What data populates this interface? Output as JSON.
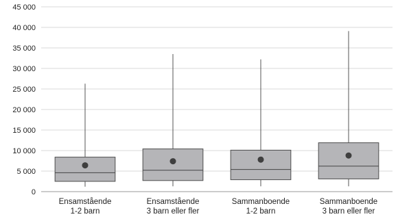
{
  "chart_data": {
    "type": "boxplot",
    "title": "",
    "xlabel": "",
    "ylabel": "",
    "ylim": [
      0,
      45000
    ],
    "yticks": [
      0,
      5000,
      10000,
      15000,
      20000,
      25000,
      30000,
      35000,
      40000,
      45000
    ],
    "ytick_labels": [
      "0",
      "5 000",
      "10 000",
      "15 000",
      "20 000",
      "25 000",
      "30 000",
      "35 000",
      "40 000",
      "45 000"
    ],
    "grid": true,
    "legend": "none",
    "categories": [
      {
        "line1": "Ensamstående",
        "line2": "1-2 barn"
      },
      {
        "line1": "Ensamstående",
        "line2": "3 barn eller fler"
      },
      {
        "line1": "Sammanboende",
        "line2": "1-2 barn"
      },
      {
        "line1": "Sammanboende",
        "line2": "3 barn eller fler"
      }
    ],
    "boxes": [
      {
        "min": 1200,
        "q1": 2500,
        "median": 4600,
        "q3": 8400,
        "max": 26300,
        "mean": 6400
      },
      {
        "min": 1300,
        "q1": 2700,
        "median": 5200,
        "q3": 10400,
        "max": 33500,
        "mean": 7400
      },
      {
        "min": 1300,
        "q1": 2900,
        "median": 5400,
        "q3": 10100,
        "max": 32200,
        "mean": 7800
      },
      {
        "min": 1300,
        "q1": 3100,
        "median": 6200,
        "q3": 11900,
        "max": 39100,
        "mean": 8800
      }
    ],
    "colors": {
      "box_fill": "#b5b5b8",
      "box_stroke": "#4d4d4d",
      "whisker": "#555555",
      "median": "#444444",
      "mean_marker": "#3f3f3f",
      "grid": "#d9d9d9",
      "axis": "#9a9a9a"
    }
  }
}
